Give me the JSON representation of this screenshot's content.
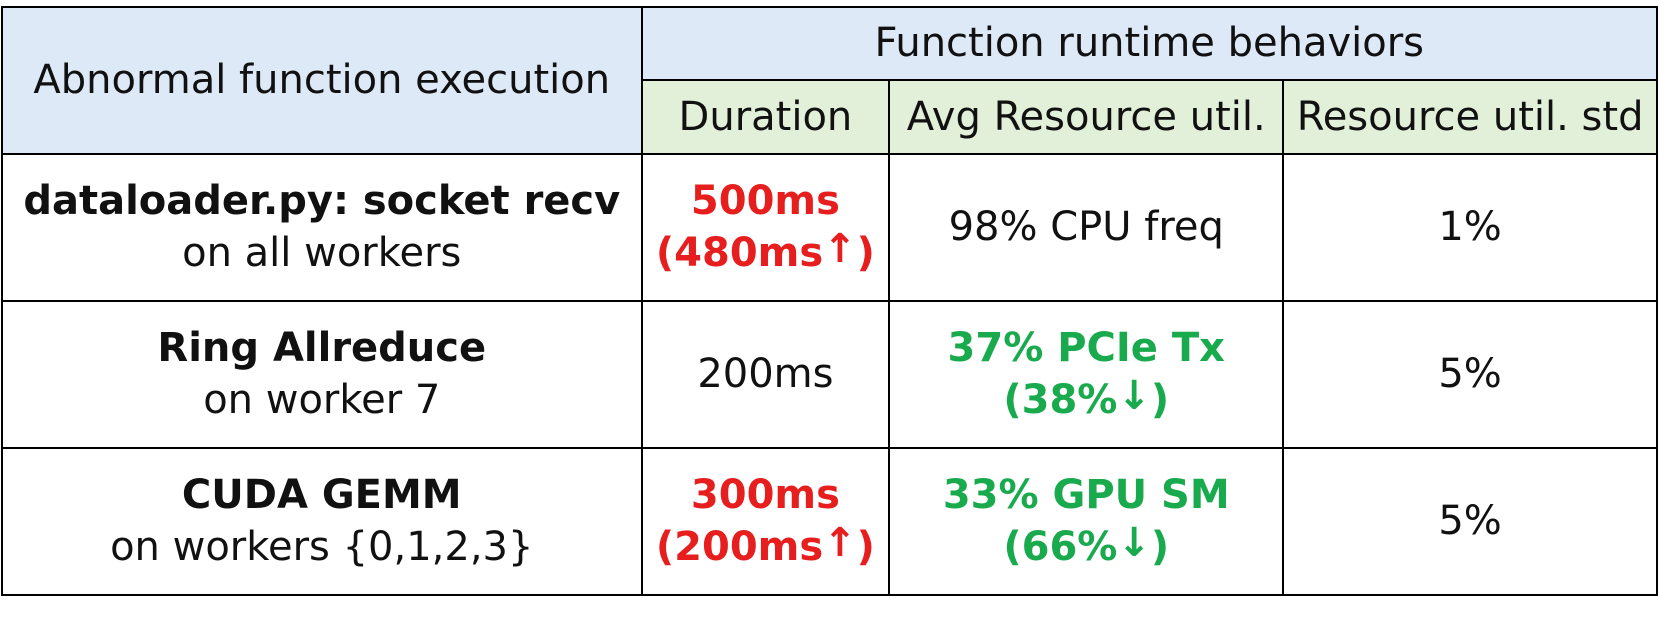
{
  "header": {
    "left": "Abnormal function execution",
    "group": "Function runtime behaviors",
    "columns": [
      "Duration",
      "Avg Resource util.",
      "Resource util. std"
    ]
  },
  "rows": [
    {
      "func": "dataloader.py: socket recv",
      "scope": "on all workers",
      "duration": {
        "value": "500ms",
        "delta": "(480ms",
        "arrow": "↑",
        "close": ")",
        "color": "red"
      },
      "util": {
        "value": "98% CPU freq",
        "color": "normal"
      },
      "std": "1%"
    },
    {
      "func": "Ring Allreduce",
      "scope": "on worker 7",
      "duration": {
        "value": "200ms",
        "color": "normal"
      },
      "util": {
        "value": "37% PCIe Tx",
        "delta": "(38%",
        "arrow": "↓",
        "close": ")",
        "color": "green"
      },
      "std": "5%"
    },
    {
      "func": "CUDA GEMM",
      "scope": "on workers {0,1,2,3}",
      "duration": {
        "value": "300ms",
        "delta": "(200ms",
        "arrow": "↑",
        "close": ")",
        "color": "red"
      },
      "util": {
        "value": "33% GPU SM",
        "delta": "(66%",
        "arrow": "↓",
        "close": ")",
        "color": "green"
      },
      "std": "5%"
    }
  ],
  "colors": {
    "header_blue": "#dde9f6",
    "header_green": "#e2efd9",
    "increase": "#e61e1e",
    "decrease": "#1aaa4e"
  }
}
